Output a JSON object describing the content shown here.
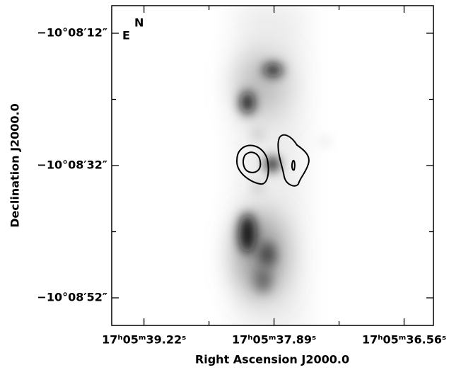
{
  "chart_data": {
    "type": "image",
    "xlabel": "Right Ascension J2000.0",
    "ylabel": "Declination J2000.0",
    "xlim": [
      39.55,
      36.26
    ],
    "ylim": [
      7.83,
      56.17
    ],
    "xticks": [
      {
        "value": 39.22,
        "label": "17ʰ05ᵐ39.22ˢ"
      },
      {
        "value": 37.89,
        "label": "17ʰ05ᵐ37.89ˢ"
      },
      {
        "value": 36.56,
        "label": "17ʰ05ᵐ36.56ˢ"
      }
    ],
    "xticks_minor": [
      38.555,
      37.225
    ],
    "yticks": [
      {
        "value": 12,
        "label": "−10°08′12″"
      },
      {
        "value": 32,
        "label": "−10°08′32″"
      },
      {
        "value": 52,
        "label": "−10°08′52″"
      }
    ],
    "yticks_minor": [
      22,
      42
    ],
    "compass": {
      "east": "E",
      "north": "N"
    }
  }
}
